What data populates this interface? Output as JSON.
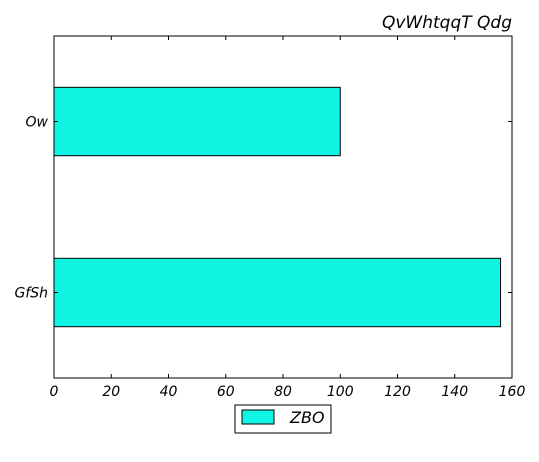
{
  "chart_data": {
    "type": "bar",
    "orientation": "horizontal",
    "title": "QvWhtqqT Qdg",
    "xlabel": "",
    "ylabel": "",
    "categories": [
      "GfSh",
      "Ow"
    ],
    "series": [
      {
        "name": "ZBO",
        "values": [
          156,
          100
        ],
        "color": "#10f5e3"
      }
    ],
    "xlim": [
      0,
      160
    ],
    "xticks": [
      0,
      20,
      40,
      60,
      80,
      100,
      120,
      140,
      160
    ],
    "grid": false,
    "legend_position": "bottom-center"
  }
}
